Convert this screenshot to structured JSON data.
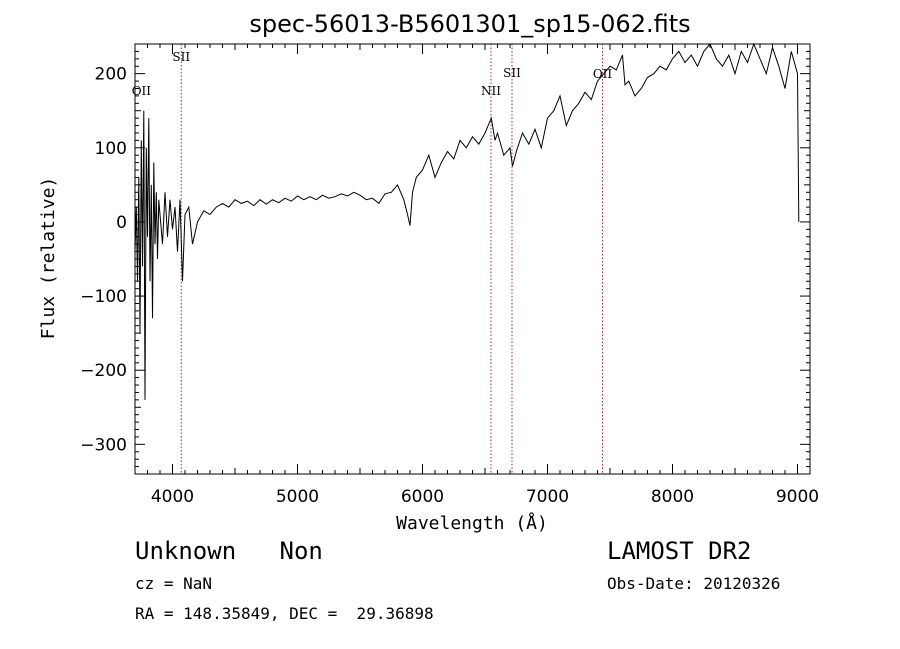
{
  "chart_data": {
    "type": "line",
    "title": "spec-56013-B5601301_sp15-062.fits",
    "xlabel": "Wavelength (Å)",
    "ylabel": "Flux (relative)",
    "xlim": [
      3700,
      9100
    ],
    "ylim": [
      -340,
      240
    ],
    "xticks": [
      4000,
      5000,
      6000,
      7000,
      8000,
      9000
    ],
    "yticks": [
      -300,
      -200,
      -100,
      0,
      100,
      200
    ],
    "tick_labels_x": [
      "4000",
      "5000",
      "6000",
      "7000",
      "8000",
      "9000"
    ],
    "tick_labels_y": [
      "−300",
      "−200",
      "−100",
      "0",
      "100",
      "200"
    ],
    "series": [
      {
        "name": "flux",
        "x": [
          3700,
          3710,
          3720,
          3730,
          3740,
          3750,
          3760,
          3770,
          3780,
          3790,
          3800,
          3810,
          3820,
          3830,
          3840,
          3850,
          3860,
          3870,
          3880,
          3890,
          3900,
          3920,
          3940,
          3960,
          3980,
          4000,
          4020,
          4040,
          4060,
          4080,
          4100,
          4130,
          4160,
          4200,
          4250,
          4300,
          4350,
          4400,
          4450,
          4500,
          4550,
          4600,
          4650,
          4700,
          4750,
          4800,
          4850,
          4900,
          4950,
          5000,
          5050,
          5100,
          5150,
          5200,
          5250,
          5300,
          5350,
          5400,
          5450,
          5500,
          5550,
          5600,
          5650,
          5700,
          5750,
          5800,
          5850,
          5880,
          5900,
          5920,
          5950,
          6000,
          6050,
          6100,
          6150,
          6200,
          6250,
          6300,
          6350,
          6400,
          6450,
          6500,
          6550,
          6580,
          6600,
          6650,
          6700,
          6720,
          6750,
          6800,
          6850,
          6900,
          6950,
          7000,
          7050,
          7100,
          7150,
          7200,
          7250,
          7300,
          7350,
          7400,
          7450,
          7500,
          7550,
          7600,
          7620,
          7650,
          7700,
          7750,
          7800,
          7850,
          7900,
          7950,
          8000,
          8050,
          8100,
          8150,
          8200,
          8250,
          8300,
          8350,
          8400,
          8450,
          8500,
          8550,
          8600,
          8650,
          8700,
          8750,
          8800,
          8850,
          8900,
          8950,
          9000,
          9010
        ],
        "y": [
          -40,
          20,
          -80,
          60,
          -150,
          110,
          -60,
          150,
          -240,
          100,
          -20,
          140,
          -80,
          50,
          -130,
          80,
          -30,
          40,
          -50,
          30,
          10,
          -30,
          40,
          -20,
          30,
          -10,
          20,
          -40,
          30,
          -80,
          10,
          20,
          -30,
          0,
          15,
          10,
          20,
          25,
          20,
          30,
          25,
          28,
          22,
          30,
          24,
          30,
          26,
          32,
          28,
          35,
          30,
          34,
          30,
          36,
          32,
          34,
          38,
          35,
          40,
          36,
          30,
          32,
          25,
          38,
          40,
          50,
          30,
          10,
          -5,
          40,
          60,
          70,
          90,
          60,
          80,
          95,
          85,
          110,
          100,
          115,
          105,
          120,
          140,
          110,
          120,
          90,
          100,
          75,
          95,
          120,
          105,
          125,
          100,
          140,
          150,
          170,
          130,
          150,
          160,
          175,
          165,
          190,
          200,
          210,
          205,
          225,
          185,
          190,
          170,
          180,
          195,
          200,
          210,
          205,
          220,
          230,
          215,
          225,
          210,
          230,
          240,
          220,
          210,
          225,
          200,
          230,
          215,
          240,
          220,
          200,
          235,
          210,
          180,
          230,
          200,
          0
        ]
      }
    ],
    "lines": [
      {
        "x": 4070,
        "label": "SII"
      },
      {
        "x": 6548,
        "label": "NII"
      },
      {
        "x": 6716,
        "label": "SII"
      },
      {
        "x": 7440,
        "label": "OII"
      }
    ],
    "oii_label": "OII",
    "oii_x": 3727
  },
  "info": {
    "type_line": "Unknown   Non",
    "cz_line": "cz = NaN",
    "coord_line": "RA = 148.35849, DEC =  29.36898",
    "survey": "LAMOST DR2",
    "obs_date": "Obs-Date: 20120326"
  },
  "colors": {
    "axis": "#000000",
    "line": "#000000",
    "marker_line": "#b22222"
  }
}
